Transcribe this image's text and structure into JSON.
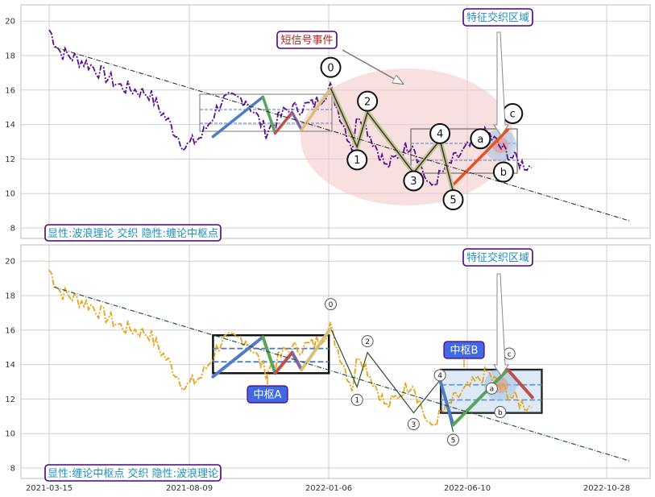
{
  "chart_data": [
    {
      "type": "line",
      "panel": "top",
      "footer_label": "显性:波浪理论 交织 隐性:缠论中枢点",
      "ylim": [
        7.5,
        21
      ],
      "yticks": [
        8,
        10,
        12,
        14,
        16,
        18,
        20
      ],
      "grid": true,
      "price_color": "#5a0f8a",
      "price_style": "dash-dot",
      "annotations": [
        {
          "text": "短信号事件",
          "color": "#b22222"
        },
        {
          "text": "特征交织区域",
          "color": "#1f8fbf"
        }
      ],
      "wave_points": [
        {
          "label": "0",
          "date": "2022-01-08",
          "y": 16.1
        },
        {
          "label": "1",
          "date": "2022-02-05",
          "y": 12.7
        },
        {
          "label": "2",
          "date": "2022-02-16",
          "y": 14.7
        },
        {
          "label": "3",
          "date": "2022-04-06",
          "y": 11.2
        },
        {
          "label": "4",
          "date": "2022-05-04",
          "y": 13.1
        },
        {
          "label": "5",
          "date": "2022-05-18",
          "y": 10.1
        },
        {
          "label": "a",
          "date": "2022-06-28",
          "y": 12.8
        },
        {
          "label": "b",
          "date": "2022-07-07",
          "y": 11.9
        },
        {
          "label": "c",
          "date": "2022-07-15",
          "y": 13.7
        }
      ]
    },
    {
      "type": "line",
      "panel": "bottom",
      "footer_label": "显性:缠论中枢点 交织 隐性:波浪理论",
      "ylim": [
        7.5,
        21
      ],
      "yticks": [
        8,
        10,
        12,
        14,
        16,
        18,
        20
      ],
      "xticks": [
        "2021-03-15",
        "2021-08-09",
        "2022-01-06",
        "2022-06-10",
        "2022-10-28"
      ],
      "grid": true,
      "price_color": "#e8a317",
      "price_style": "dash-dot",
      "annotations": [
        {
          "text": "特征交织区域",
          "color": "#1f8fbf"
        },
        {
          "text": "中枢A",
          "color": "#ffffff"
        },
        {
          "text": "中枢B",
          "color": "#ffffff"
        }
      ],
      "pivot_zones": [
        {
          "name": "中枢A",
          "x0": "2021-09-05",
          "x1": "2022-01-06",
          "y0": 13.5,
          "y1": 15.7
        },
        {
          "name": "中枢B",
          "x0": "2022-05-05",
          "x1": "2022-08-20",
          "y0": 11.2,
          "y1": 13.7
        }
      ],
      "wave_points": [
        {
          "label": "0",
          "date": "2022-01-08",
          "y": 16.1
        },
        {
          "label": "1",
          "date": "2022-02-05",
          "y": 12.7
        },
        {
          "label": "2",
          "date": "2022-02-16",
          "y": 14.7
        },
        {
          "label": "3",
          "date": "2022-04-06",
          "y": 11.2
        },
        {
          "label": "4",
          "date": "2022-05-04",
          "y": 13.1
        },
        {
          "label": "5",
          "date": "2022-05-18",
          "y": 10.1
        },
        {
          "label": "a",
          "date": "2022-06-28",
          "y": 12.8
        },
        {
          "label": "b",
          "date": "2022-07-07",
          "y": 11.9
        },
        {
          "label": "c",
          "date": "2022-07-15",
          "y": 13.7
        }
      ]
    }
  ],
  "trend_line": {
    "x0": "2021-03-20",
    "y0": 18.5,
    "x1": "2022-11-22",
    "y1": 8.4
  },
  "colors": {
    "grid": "#cfcfcf",
    "frame": "#bdbdbd",
    "label_border": "#4b0082",
    "label_text": "#1f8fbf",
    "ellipse": "#f3c9cc",
    "blue_band": "#9ec3e6",
    "pivot_box": "#111111",
    "pivot_fill": "#4169e1"
  }
}
